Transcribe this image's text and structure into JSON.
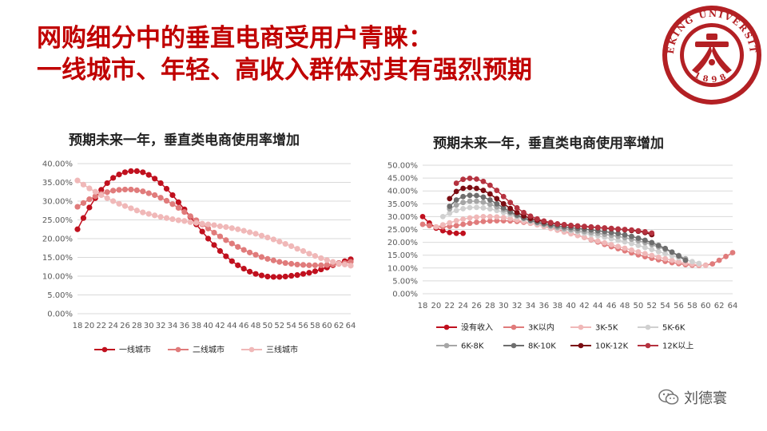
{
  "slide": {
    "title_line1": "网购细分中的垂直电商受用户青睐：",
    "title_line2": "一线城市、年轻、高收入群体对其有强烈预期",
    "watermark": "刘德寰",
    "logo_icon": "peking-university-seal-icon",
    "logo_lettering": "PEKING UNIVERSITY 1898",
    "accent_color": "#c00000"
  },
  "chart_data": [
    {
      "type": "line",
      "title": "预期未来一年，垂直类电商使用率增加",
      "x": [
        18,
        19,
        20,
        21,
        22,
        23,
        24,
        25,
        26,
        27,
        28,
        29,
        30,
        31,
        32,
        33,
        34,
        35,
        36,
        37,
        38,
        39,
        40,
        41,
        42,
        43,
        44,
        45,
        46,
        47,
        48,
        49,
        50,
        51,
        52,
        53,
        54,
        55,
        56,
        57,
        58,
        59,
        60,
        61,
        62,
        63,
        64
      ],
      "x_ticks": [
        18,
        20,
        22,
        24,
        26,
        28,
        30,
        32,
        34,
        36,
        38,
        40,
        42,
        44,
        46,
        48,
        50,
        52,
        54,
        56,
        58,
        60,
        62,
        64
      ],
      "ylim": [
        0,
        40
      ],
      "y_ticks": [
        "0.00%",
        "5.00%",
        "10.00%",
        "15.00%",
        "20.00%",
        "25.00%",
        "30.00%",
        "35.00%",
        "40.00%"
      ],
      "legend_position": "bottom",
      "grid": true,
      "series": [
        {
          "name": "一线城市",
          "color": "#c0101e",
          "values": [
            22.5,
            25.5,
            28.3,
            30.8,
            33.0,
            34.8,
            36.2,
            37.1,
            37.7,
            38.0,
            38.0,
            37.7,
            37.0,
            36.0,
            34.8,
            33.3,
            31.6,
            29.7,
            27.8,
            25.8,
            23.8,
            21.9,
            20.0,
            18.3,
            16.7,
            15.3,
            14.0,
            12.9,
            12.0,
            11.2,
            10.6,
            10.2,
            9.9,
            9.8,
            9.8,
            9.9,
            10.1,
            10.3,
            10.6,
            10.9,
            11.3,
            11.8,
            12.3,
            12.9,
            13.5,
            14.0,
            14.5
          ]
        },
        {
          "name": "二线城市",
          "color": "#e07b7b",
          "values": [
            28.5,
            29.5,
            30.5,
            31.3,
            31.9,
            32.4,
            32.8,
            33.0,
            33.1,
            33.1,
            32.9,
            32.6,
            32.1,
            31.6,
            30.9,
            30.1,
            29.2,
            28.2,
            27.1,
            26.0,
            24.9,
            23.8,
            22.7,
            21.6,
            20.6,
            19.6,
            18.7,
            17.8,
            17.0,
            16.3,
            15.7,
            15.1,
            14.6,
            14.2,
            13.8,
            13.5,
            13.3,
            13.1,
            13.0,
            12.9,
            12.9,
            12.9,
            13.0,
            13.1,
            13.3,
            13.5,
            13.8
          ]
        },
        {
          "name": "三线城市",
          "color": "#f0b8b8",
          "values": [
            35.5,
            34.4,
            33.4,
            32.5,
            31.6,
            30.8,
            30.0,
            29.3,
            28.7,
            28.1,
            27.5,
            27.0,
            26.6,
            26.2,
            25.8,
            25.5,
            25.2,
            24.9,
            24.7,
            24.4,
            24.2,
            24.0,
            23.8,
            23.6,
            23.3,
            23.1,
            22.8,
            22.5,
            22.1,
            21.7,
            21.3,
            20.8,
            20.3,
            19.8,
            19.2,
            18.6,
            18.0,
            17.3,
            16.7,
            16.0,
            15.4,
            14.8,
            14.3,
            13.8,
            13.4,
            13.1,
            12.8
          ]
        }
      ]
    },
    {
      "type": "line",
      "title": "预期未来一年，垂直类电商使用率增加",
      "x_ticks": [
        18,
        20,
        22,
        24,
        26,
        28,
        30,
        32,
        34,
        36,
        38,
        40,
        42,
        44,
        46,
        48,
        50,
        52,
        54,
        56,
        58,
        60,
        62,
        64
      ],
      "ylim": [
        0,
        50
      ],
      "y_ticks": [
        "0.00%",
        "5.00%",
        "10.00%",
        "15.00%",
        "20.00%",
        "25.00%",
        "30.00%",
        "35.00%",
        "40.00%",
        "45.00%",
        "50.00%"
      ],
      "legend_position": "bottom",
      "grid": true,
      "series": [
        {
          "name": "没有收入",
          "color": "#c0101e",
          "x": [
            18,
            19,
            20,
            21,
            22,
            23,
            24
          ],
          "values": [
            30.0,
            27.5,
            25.5,
            24.5,
            23.8,
            23.5,
            23.5
          ]
        },
        {
          "name": "3K以内",
          "color": "#e07b7b",
          "x": [
            18,
            19,
            20,
            21,
            22,
            23,
            24,
            25,
            26,
            27,
            28,
            29,
            30,
            31,
            32,
            33,
            34,
            35,
            36,
            37,
            38,
            39,
            40,
            41,
            42,
            43,
            44,
            45,
            46,
            47,
            48,
            49,
            50,
            51,
            52,
            53,
            54,
            55,
            56,
            57,
            58,
            59,
            60,
            61,
            62,
            63,
            64
          ],
          "values": [
            27.0,
            26.5,
            26.0,
            26.0,
            26.2,
            26.5,
            27.0,
            27.4,
            27.8,
            28.1,
            28.3,
            28.4,
            28.4,
            28.3,
            28.1,
            27.8,
            27.4,
            26.9,
            26.3,
            25.7,
            25.0,
            24.3,
            23.5,
            22.7,
            21.9,
            21.0,
            20.1,
            19.2,
            18.3,
            17.5,
            16.7,
            15.9,
            15.1,
            14.4,
            13.8,
            13.2,
            12.6,
            12.1,
            11.7,
            11.3,
            11.1,
            11.0,
            11.1,
            11.6,
            13.0,
            14.5,
            16.0
          ]
        },
        {
          "name": "3K-5K",
          "color": "#f0b8b8",
          "x": [
            20,
            21,
            22,
            23,
            24,
            25,
            26,
            27,
            28,
            29,
            30,
            31,
            32,
            33,
            34,
            35,
            36,
            37,
            38,
            39,
            40,
            41,
            42,
            43,
            44,
            45,
            46,
            47,
            48,
            49,
            50,
            51,
            52,
            53,
            54,
            55,
            56,
            57,
            58,
            59,
            60
          ],
          "values": [
            26.0,
            26.8,
            27.6,
            28.4,
            29.0,
            29.5,
            29.8,
            30.0,
            30.0,
            29.9,
            29.6,
            29.2,
            28.7,
            28.1,
            27.5,
            26.8,
            26.1,
            25.4,
            24.7,
            24.0,
            23.3,
            22.6,
            21.9,
            21.2,
            20.5,
            19.8,
            19.1,
            18.4,
            17.7,
            17.0,
            16.3,
            15.6,
            14.9,
            14.2,
            13.6,
            13.0,
            12.4,
            11.9,
            11.5,
            11.2,
            11.0
          ]
        },
        {
          "name": "5K-6K",
          "color": "#d0d0d0",
          "x": [
            21,
            22,
            23,
            24,
            25,
            26,
            27,
            28,
            29,
            30,
            31,
            32,
            33,
            34,
            35,
            36,
            37,
            38,
            39,
            40,
            41,
            42,
            43,
            44,
            45,
            46,
            47,
            48,
            49,
            50,
            51,
            52,
            53,
            54,
            55,
            56,
            57,
            58,
            59
          ],
          "values": [
            30.0,
            31.3,
            32.4,
            33.1,
            33.5,
            33.6,
            33.4,
            33.0,
            32.4,
            31.6,
            30.8,
            29.9,
            29.0,
            28.2,
            27.4,
            26.7,
            26.1,
            25.5,
            25.0,
            24.5,
            24.0,
            23.5,
            23.0,
            22.5,
            22.0,
            21.4,
            20.8,
            20.2,
            19.5,
            18.8,
            18.0,
            17.2,
            16.4,
            15.6,
            14.8,
            14.0,
            13.2,
            12.5,
            11.8
          ]
        },
        {
          "name": "6K-8K",
          "color": "#a6a6a6",
          "x": [
            22,
            23,
            24,
            25,
            26,
            27,
            28,
            29,
            30,
            31,
            32,
            33,
            34,
            35,
            36,
            37,
            38,
            39,
            40,
            41,
            42,
            43,
            44,
            45,
            46,
            47,
            48,
            49,
            50,
            51,
            52,
            53,
            54,
            55,
            56,
            57
          ],
          "values": [
            33.0,
            34.5,
            35.5,
            36.0,
            36.0,
            35.6,
            34.8,
            33.8,
            32.6,
            31.4,
            30.3,
            29.3,
            28.4,
            27.6,
            26.9,
            26.3,
            25.8,
            25.3,
            24.9,
            24.5,
            24.2,
            23.8,
            23.5,
            23.1,
            22.7,
            22.3,
            21.8,
            21.2,
            20.6,
            19.9,
            19.1,
            18.2,
            17.2,
            16.1,
            14.9,
            13.6
          ]
        },
        {
          "name": "8K-10K",
          "color": "#6e6e6e",
          "x": [
            22,
            23,
            24,
            25,
            26,
            27,
            28,
            29,
            30,
            31,
            32,
            33,
            34,
            35,
            36,
            37,
            38,
            39,
            40,
            41,
            42,
            43,
            44,
            45,
            46,
            47,
            48,
            49,
            50,
            51,
            52,
            53,
            54,
            55,
            56,
            57
          ],
          "values": [
            34.0,
            36.5,
            37.8,
            38.3,
            38.2,
            37.6,
            36.5,
            35.0,
            33.4,
            31.9,
            30.6,
            29.5,
            28.6,
            27.9,
            27.3,
            26.8,
            26.4,
            26.0,
            25.7,
            25.4,
            25.1,
            24.8,
            24.5,
            24.2,
            23.8,
            23.4,
            22.9,
            22.3,
            21.6,
            20.8,
            19.9,
            18.8,
            17.6,
            16.2,
            14.7,
            13.0
          ]
        },
        {
          "name": "10K-12K",
          "color": "#7b0c12",
          "x": [
            22,
            23,
            24,
            25,
            26,
            27,
            28,
            29,
            30,
            31,
            32,
            33,
            34,
            35,
            36,
            37,
            38,
            39,
            40,
            41,
            42,
            43,
            44,
            45,
            46,
            47,
            48,
            49,
            50,
            51,
            52
          ],
          "values": [
            37.0,
            39.8,
            41.0,
            41.3,
            41.0,
            40.2,
            38.8,
            37.0,
            35.0,
            33.2,
            31.6,
            30.3,
            29.3,
            28.6,
            28.0,
            27.5,
            27.1,
            26.8,
            26.5,
            26.3,
            26.1,
            25.9,
            25.7,
            25.5,
            25.3,
            25.1,
            24.9,
            24.6,
            24.3,
            23.8,
            23.0
          ]
        },
        {
          "name": "12K以上",
          "color": "#b5323f",
          "x": [
            23,
            24,
            25,
            26,
            27,
            28,
            29,
            30,
            31,
            32,
            33,
            34,
            35,
            36,
            37,
            38,
            39,
            40,
            41,
            42,
            43,
            44,
            45,
            46,
            47,
            48,
            49,
            50,
            51,
            52
          ],
          "values": [
            43.0,
            44.5,
            44.9,
            44.6,
            43.7,
            42.2,
            40.2,
            37.8,
            35.5,
            33.4,
            31.6,
            30.2,
            29.1,
            28.3,
            27.7,
            27.2,
            26.9,
            26.6,
            26.4,
            26.2,
            26.0,
            25.8,
            25.6,
            25.4,
            25.2,
            25.0,
            24.8,
            24.5,
            24.1,
            23.6
          ]
        }
      ]
    }
  ]
}
